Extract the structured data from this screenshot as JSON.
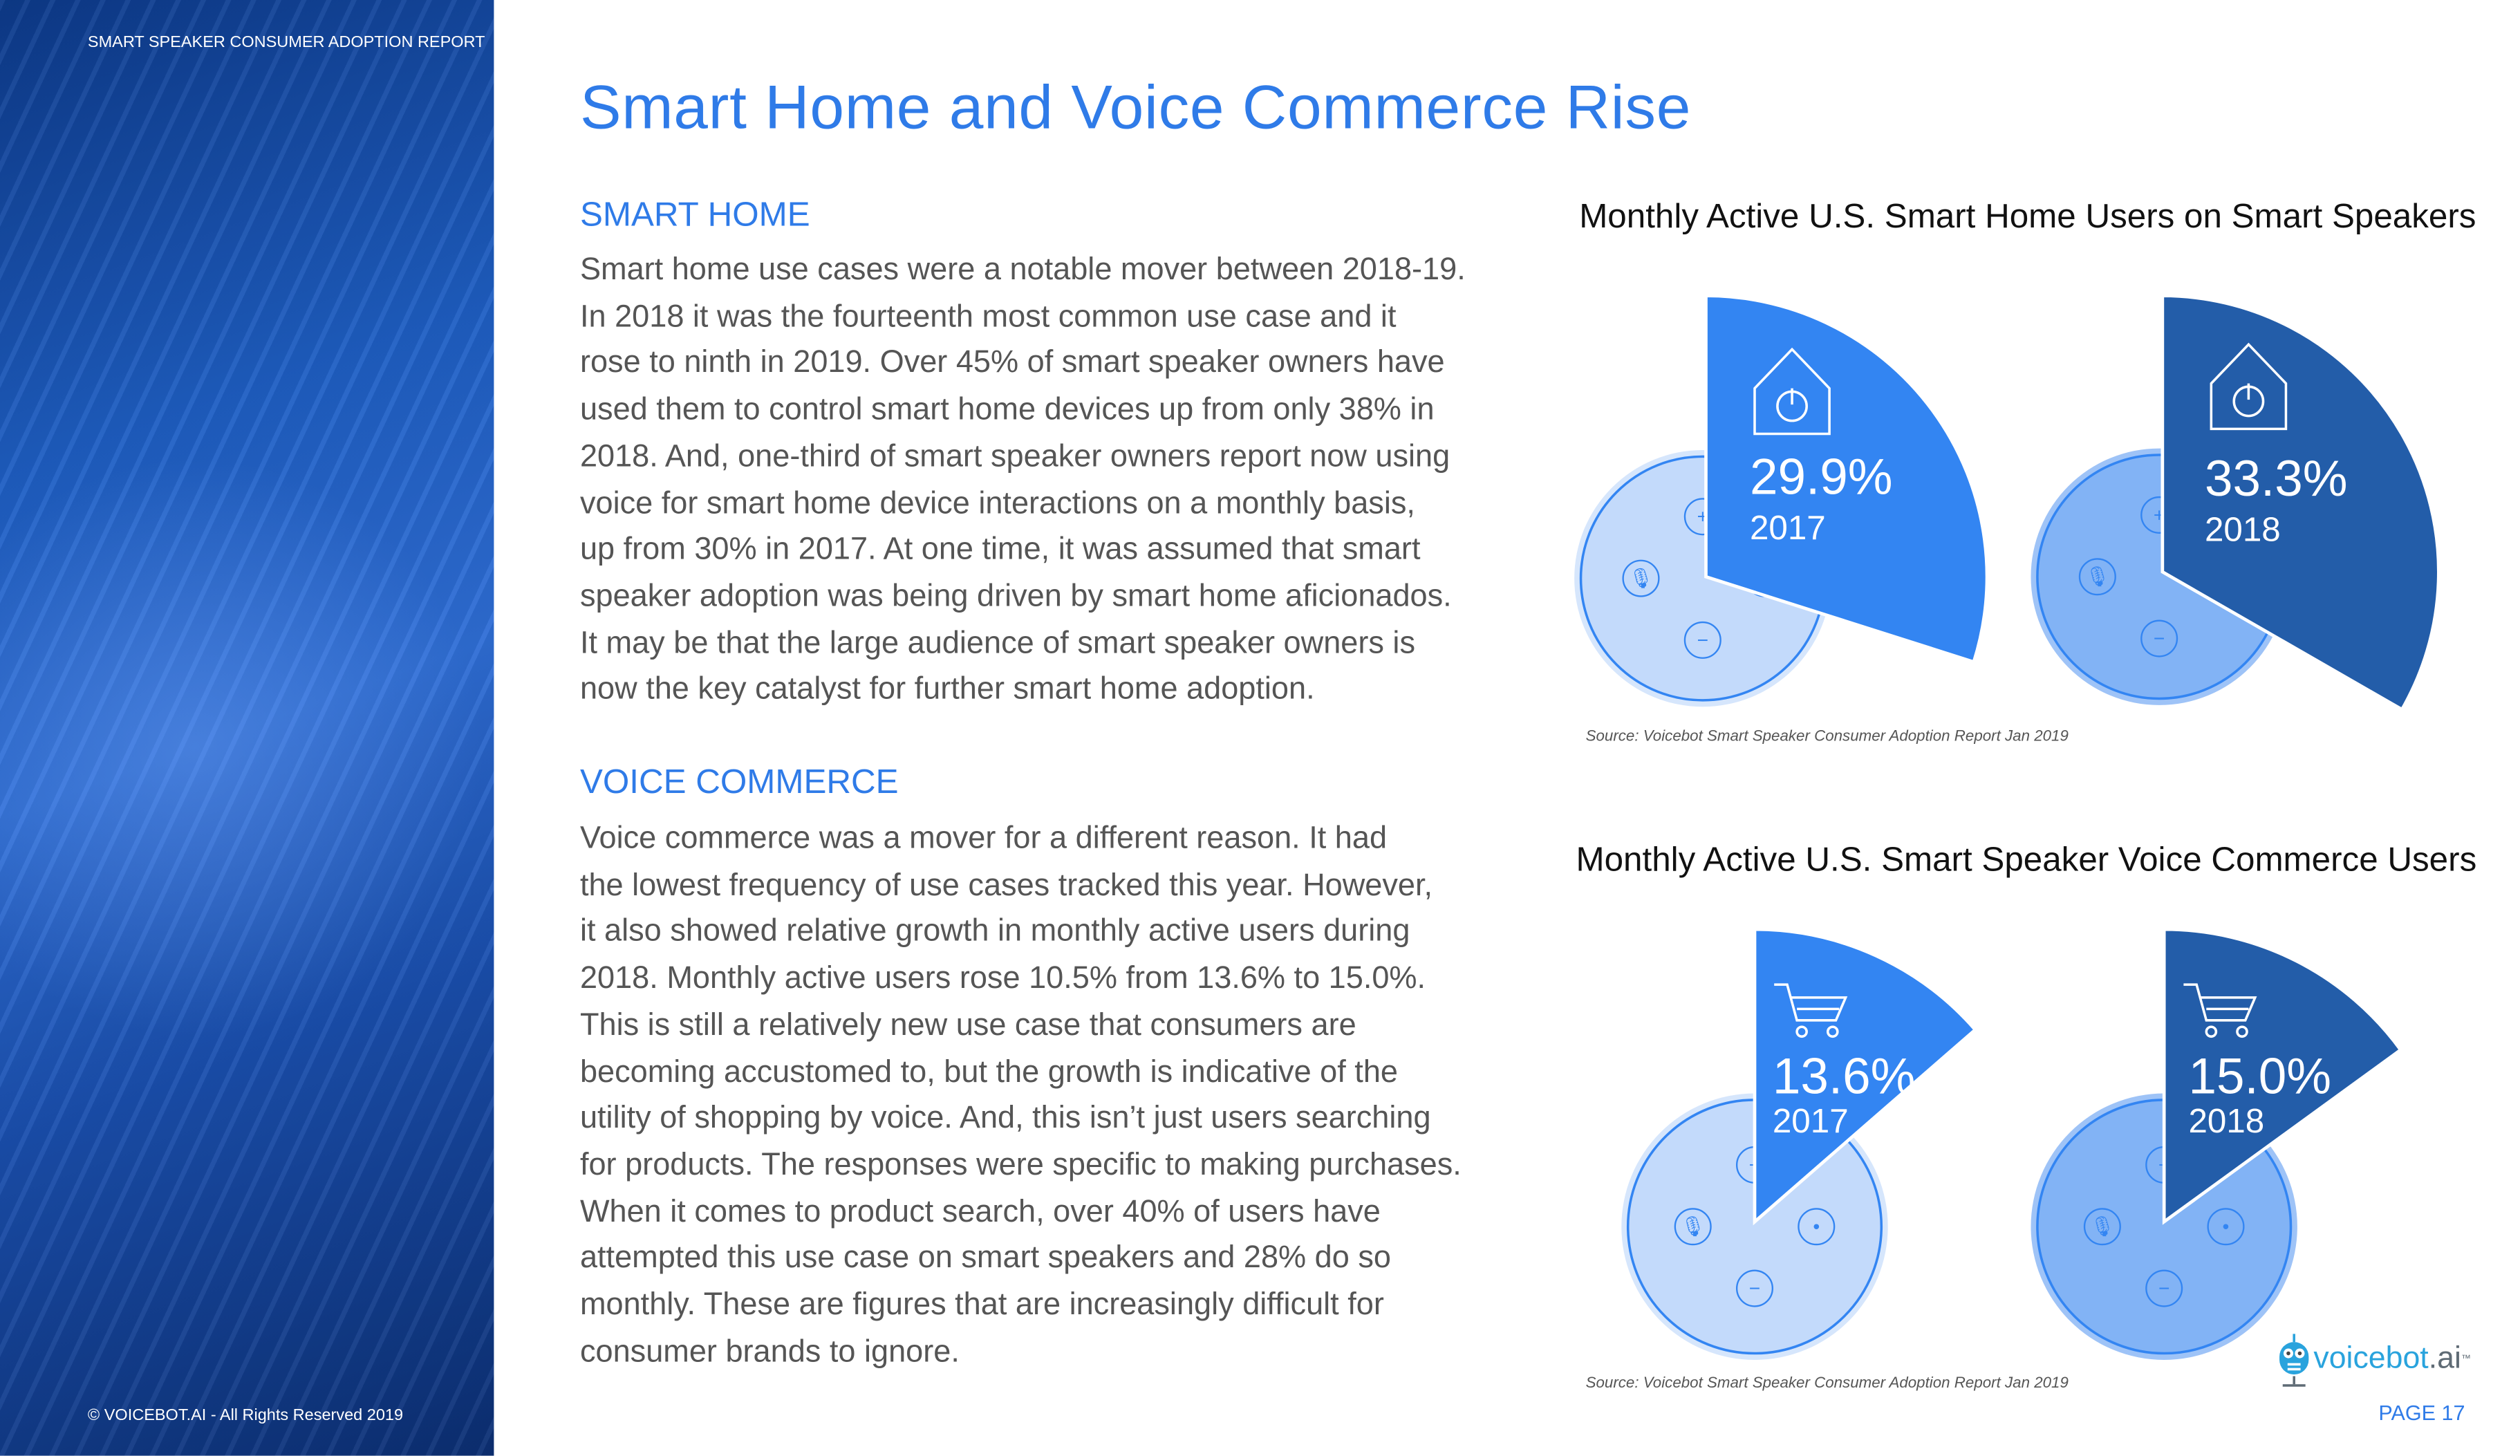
{
  "sidebar": {
    "header": "SMART SPEAKER CONSUMER ADOPTION REPORT",
    "footer": "© VOICEBOT.AI - All Rights Reserved 2019"
  },
  "title": "Smart Home and Voice Commerce Rise",
  "sections": [
    {
      "heading": "SMART HOME",
      "lines": [
        "Smart home use cases were a notable mover between 2018-19.",
        "In 2018 it was the fourteenth most common use case and it",
        "rose to ninth in 2019. Over 45% of smart speaker owners have",
        "used them to control smart home devices up from only 38% in",
        "2018. And, one-third of smart speaker owners report now using",
        "voice for smart home device interactions on a monthly basis,",
        "up from 30% in 2017. At one time, it was assumed that smart",
        "speaker adoption was being driven by smart home aficionados.",
        "It may be that the large audience of smart speaker owners is",
        "now the key catalyst for further smart home adoption."
      ]
    },
    {
      "heading": "VOICE COMMERCE",
      "lines": [
        "Voice commerce was a mover for a different reason. It had",
        "the lowest frequency of use cases tracked this year. However,",
        "it also showed relative growth in monthly active users during",
        "2018. Monthly active users rose 10.5% from 13.6% to 15.0%.",
        "This is still a relatively new use case that consumers are",
        "becoming accustomed to, but the growth is indicative of the",
        "utility of shopping by voice. And, this isn’t just users searching",
        "for products. The responses were specific to making purchases.",
        "When it comes to product search, over 40% of users have",
        "attempted this use case on smart speakers and 28% do so",
        "monthly. These are figures that are increasingly difficult for",
        "consumer brands to ignore."
      ]
    }
  ],
  "chart_data": [
    {
      "type": "pie",
      "title": "Monthly Active U.S. Smart Home Users on Smart Speakers",
      "icon": "smart-home-power-icon",
      "categories": [
        "2017",
        "2018"
      ],
      "values": [
        29.9,
        33.3
      ],
      "labels": [
        "29.9%",
        "33.3%"
      ],
      "colors": [
        "#3385f2",
        "#235da9"
      ],
      "source": "Source: Voicebot Smart Speaker Consumer Adoption Report Jan 2019"
    },
    {
      "type": "pie",
      "title": "Monthly Active U.S. Smart Speaker Voice Commerce Users",
      "icon": "shopping-cart-icon",
      "categories": [
        "2017",
        "2018"
      ],
      "values": [
        13.6,
        15.0
      ],
      "labels": [
        "13.6%",
        "15.0%"
      ],
      "colors": [
        "#3385f2",
        "#235da9"
      ],
      "source": "Source: Voicebot Smart Speaker Consumer Adoption Report Jan 2019"
    }
  ],
  "logo": {
    "word": "voicebot",
    "suffix": ".ai",
    "tm": "™"
  },
  "page": "PAGE 17"
}
